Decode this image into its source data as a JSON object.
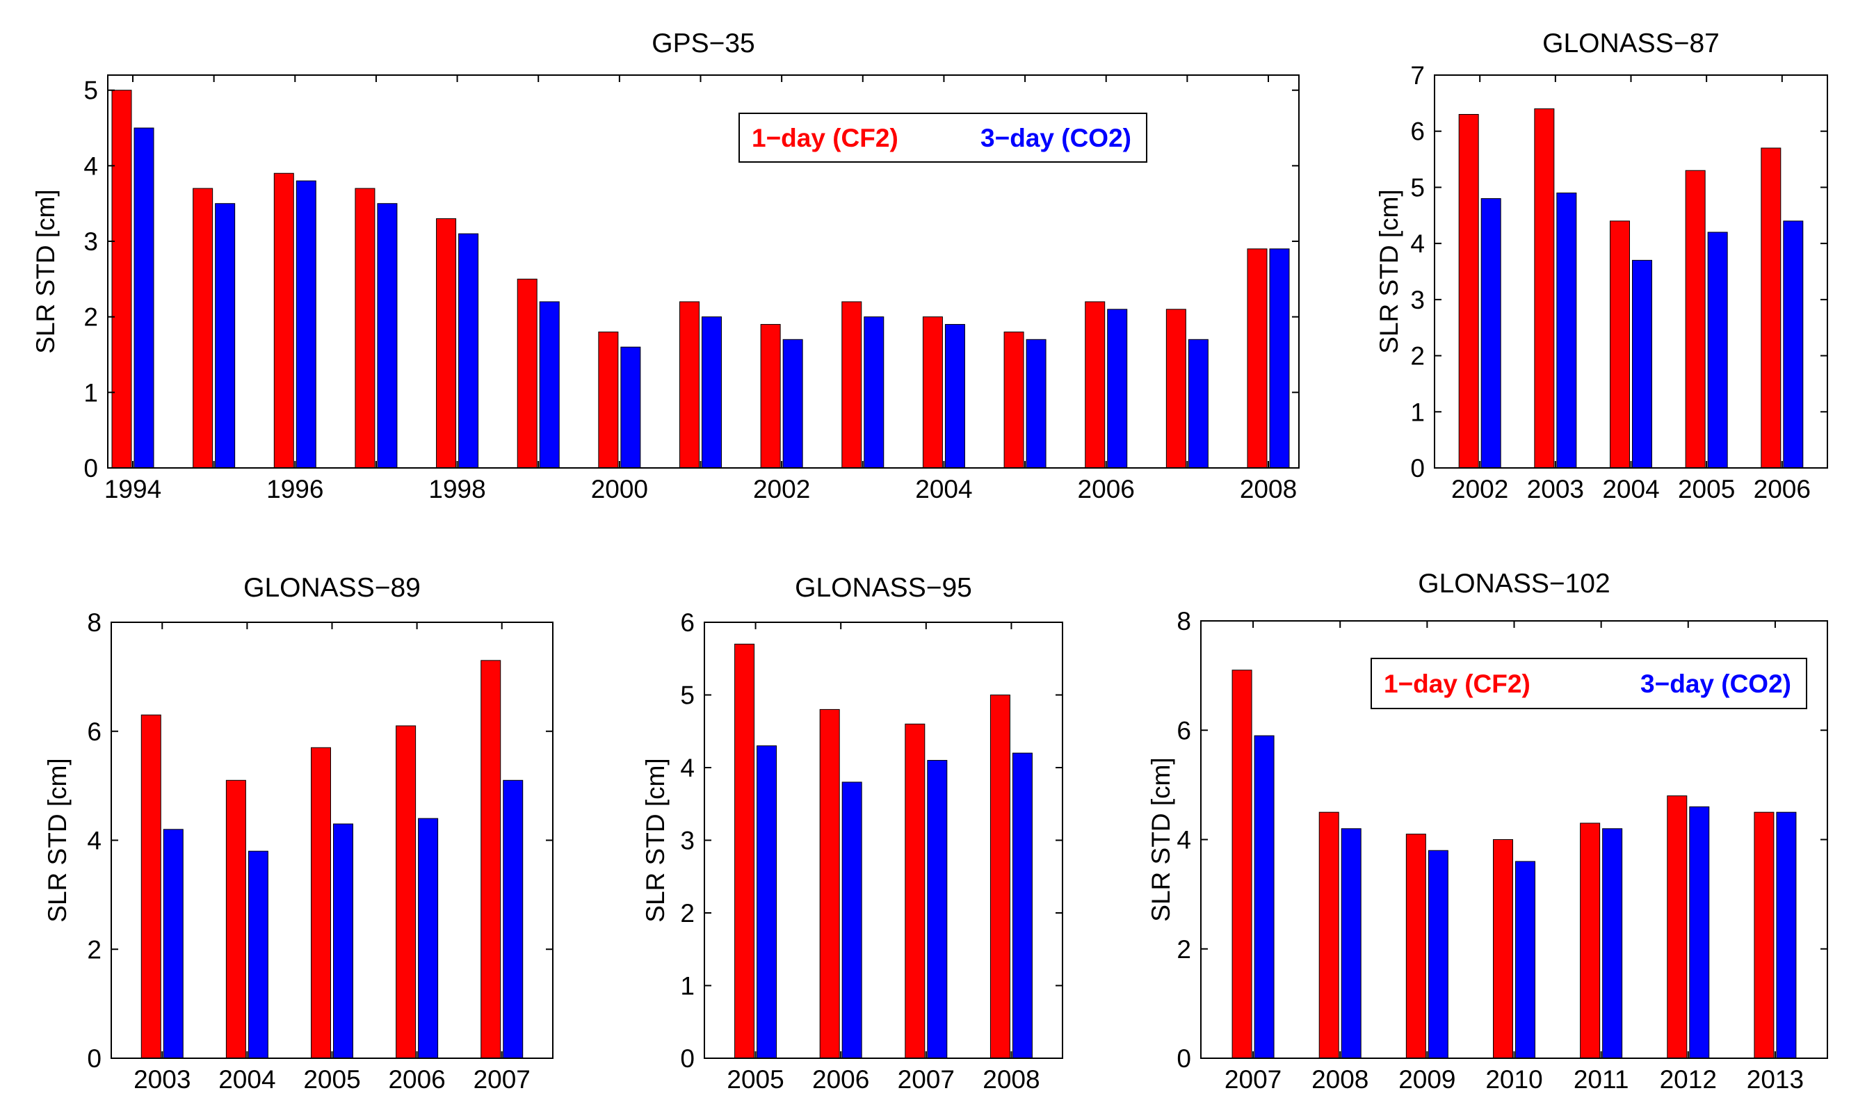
{
  "colors": {
    "series1": "#ff0000",
    "series2": "#0000ff",
    "axis": "#000000"
  },
  "legend": {
    "series1": "1−day (CF2)",
    "series2": "3−day (CO2)"
  },
  "chart_data": [
    {
      "type": "bar",
      "title": "GPS−35",
      "ylabel": "SLR STD [cm]",
      "xlabel": "",
      "categories": [
        "1994",
        "1995",
        "1996",
        "1997",
        "1998",
        "1999",
        "2000",
        "2001",
        "2002",
        "2003",
        "2004",
        "2005",
        "2006",
        "2007",
        "2008"
      ],
      "xtick_labels": [
        "1994",
        "",
        "1996",
        "",
        "1998",
        "",
        "2000",
        "",
        "2002",
        "",
        "2004",
        "",
        "2006",
        "",
        "2008"
      ],
      "yticks": [
        "0",
        "1",
        "2",
        "3",
        "4",
        "5"
      ],
      "ylim": [
        0,
        5.2
      ],
      "legend_position": "top-right",
      "series": [
        {
          "name": "1−day (CF2)",
          "values": [
            5.0,
            3.7,
            3.9,
            3.7,
            3.3,
            2.5,
            1.8,
            2.2,
            1.9,
            2.2,
            2.0,
            1.8,
            2.2,
            2.1,
            2.9
          ]
        },
        {
          "name": "3−day (CO2)",
          "values": [
            4.5,
            3.5,
            3.8,
            3.5,
            3.1,
            2.2,
            1.6,
            2.0,
            1.7,
            2.0,
            1.9,
            1.7,
            2.1,
            1.7,
            2.9
          ]
        }
      ]
    },
    {
      "type": "bar",
      "title": "GLONASS−87",
      "ylabel": "SLR STD [cm]",
      "xlabel": "",
      "categories": [
        "2002",
        "2003",
        "2004",
        "2005",
        "2006"
      ],
      "xtick_labels": [
        "2002",
        "2003",
        "2004",
        "2005",
        "2006"
      ],
      "yticks": [
        "0",
        "1",
        "2",
        "3",
        "4",
        "5",
        "6",
        "7"
      ],
      "ylim": [
        0,
        7
      ],
      "series": [
        {
          "name": "1−day (CF2)",
          "values": [
            6.3,
            6.4,
            4.4,
            5.3,
            5.7
          ]
        },
        {
          "name": "3−day (CO2)",
          "values": [
            4.8,
            4.9,
            3.7,
            4.2,
            4.4
          ]
        }
      ]
    },
    {
      "type": "bar",
      "title": "GLONASS−89",
      "ylabel": "SLR STD [cm]",
      "xlabel": "",
      "categories": [
        "2003",
        "2004",
        "2005",
        "2006",
        "2007"
      ],
      "xtick_labels": [
        "2003",
        "2004",
        "2005",
        "2006",
        "2007"
      ],
      "yticks": [
        "0",
        "2",
        "4",
        "6",
        "8"
      ],
      "ylim": [
        0,
        8
      ],
      "series": [
        {
          "name": "1−day (CF2)",
          "values": [
            6.3,
            5.1,
            5.7,
            6.1,
            7.3
          ]
        },
        {
          "name": "3−day (CO2)",
          "values": [
            4.2,
            3.8,
            4.3,
            4.4,
            5.1
          ]
        }
      ]
    },
    {
      "type": "bar",
      "title": "GLONASS−95",
      "ylabel": "SLR STD [cm]",
      "xlabel": "",
      "categories": [
        "2005",
        "2006",
        "2007",
        "2008"
      ],
      "xtick_labels": [
        "2005",
        "2006",
        "2007",
        "2008"
      ],
      "yticks": [
        "0",
        "1",
        "2",
        "3",
        "4",
        "5",
        "6"
      ],
      "ylim": [
        0,
        6
      ],
      "series": [
        {
          "name": "1−day (CF2)",
          "values": [
            5.7,
            4.8,
            4.6,
            5.0
          ]
        },
        {
          "name": "3−day (CO2)",
          "values": [
            4.3,
            3.8,
            4.1,
            4.2
          ]
        }
      ]
    },
    {
      "type": "bar",
      "title": "GLONASS−102",
      "ylabel": "SLR STD [cm]",
      "xlabel": "",
      "categories": [
        "2007",
        "2008",
        "2009",
        "2010",
        "2011",
        "2012",
        "2013"
      ],
      "xtick_labels": [
        "2007",
        "2008",
        "2009",
        "2010",
        "2011",
        "2012",
        "2013"
      ],
      "yticks": [
        "0",
        "2",
        "4",
        "6",
        "8"
      ],
      "ylim": [
        0,
        8
      ],
      "legend_position": "top-right",
      "series": [
        {
          "name": "1−day (CF2)",
          "values": [
            7.1,
            4.5,
            4.1,
            4.0,
            4.3,
            4.8,
            4.5
          ]
        },
        {
          "name": "3−day (CO2)",
          "values": [
            5.9,
            4.2,
            3.8,
            3.6,
            4.2,
            4.6,
            4.5
          ]
        }
      ]
    }
  ]
}
